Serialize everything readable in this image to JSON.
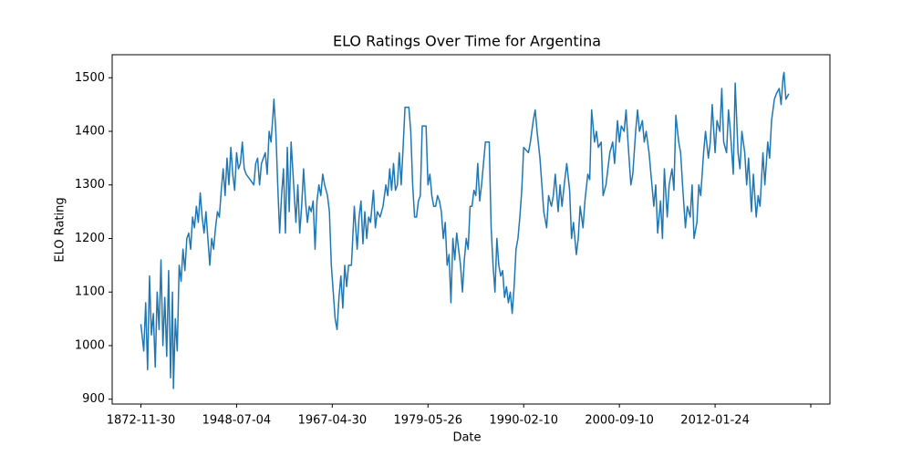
{
  "chart_data": {
    "type": "line",
    "title": "ELO Ratings Over Time for Argentina",
    "xlabel": "Date",
    "ylabel": "ELO Rating",
    "color": "#1f77b4",
    "xlim": [
      -30,
      720
    ],
    "ylim": [
      891,
      1543
    ],
    "xticks": [
      {
        "value": 0,
        "label": "1872-11-30"
      },
      {
        "value": 100,
        "label": "1948-07-04"
      },
      {
        "value": 200,
        "label": "1967-04-30"
      },
      {
        "value": 300,
        "label": "1979-05-26"
      },
      {
        "value": 400,
        "label": "1990-02-10"
      },
      {
        "value": 500,
        "label": "2000-09-10"
      },
      {
        "value": 600,
        "label": "2012-01-24"
      },
      {
        "value": 700,
        "label": null
      }
    ],
    "yticks": [
      900,
      1000,
      1100,
      1200,
      1300,
      1400,
      1500
    ],
    "x": [
      0,
      3,
      5,
      7,
      9,
      11,
      13,
      15,
      17,
      19,
      21,
      23,
      25,
      27,
      29,
      31,
      33,
      34,
      36,
      38,
      40,
      42,
      44,
      46,
      48,
      50,
      52,
      54,
      56,
      58,
      60,
      62,
      64,
      66,
      68,
      70,
      72,
      74,
      76,
      78,
      80,
      82,
      84,
      86,
      88,
      90,
      92,
      94,
      96,
      98,
      100,
      102,
      104,
      106,
      108,
      110,
      114,
      118,
      120,
      122,
      124,
      126,
      128,
      130,
      132,
      134,
      136,
      138,
      139,
      141,
      143,
      145,
      147,
      149,
      151,
      153,
      155,
      157,
      159,
      162,
      164,
      166,
      168,
      170,
      172,
      174,
      176,
      178,
      180,
      182,
      184,
      186,
      188,
      190,
      192,
      195,
      197,
      199,
      201,
      203,
      205,
      207,
      209,
      211,
      213,
      215,
      217,
      220,
      223,
      226,
      228,
      230,
      232,
      234,
      236,
      238,
      240,
      243,
      245,
      247,
      250,
      253,
      256,
      258,
      260,
      262,
      264,
      266,
      268,
      270,
      272,
      274,
      276,
      280,
      282,
      284,
      286,
      288,
      290,
      292,
      294,
      298,
      300,
      302,
      304,
      306,
      308,
      310,
      312,
      314,
      316,
      318,
      320,
      322,
      324,
      326,
      328,
      330,
      332,
      334,
      336,
      338,
      340,
      342,
      344,
      346,
      348,
      350,
      352,
      354,
      356,
      360,
      364,
      366,
      368,
      370,
      372,
      374,
      376,
      378,
      380,
      382,
      384,
      386,
      388,
      390,
      392,
      394,
      396,
      398,
      400,
      405,
      407,
      410,
      412,
      414,
      417,
      419,
      421,
      424,
      426,
      429,
      431,
      433,
      436,
      438,
      440,
      443,
      445,
      448,
      450,
      452,
      455,
      457,
      459,
      462,
      464,
      467,
      469,
      471,
      474,
      476,
      478,
      481,
      483,
      486,
      488,
      490,
      493,
      495,
      498,
      500,
      502,
      505,
      507,
      509,
      512,
      514,
      517,
      519,
      521,
      524,
      526,
      528,
      531,
      533,
      536,
      538,
      540,
      543,
      545,
      547,
      550,
      552,
      555,
      557,
      559,
      562,
      564,
      566,
      569,
      571,
      574,
      576,
      578,
      581,
      583,
      585,
      588,
      590,
      593,
      595,
      597,
      600,
      602,
      605,
      607,
      609,
      612,
      614,
      616,
      619,
      621,
      624,
      626,
      628,
      631,
      633,
      635,
      638,
      640,
      643,
      645,
      647,
      650,
      652,
      655,
      657,
      659,
      662,
      664,
      667,
      669,
      671,
      672,
      674,
      677
    ],
    "values": [
      1040,
      990,
      1080,
      955,
      1130,
      1020,
      1060,
      960,
      1100,
      1030,
      1160,
      1000,
      1090,
      980,
      1140,
      940,
      1100,
      920,
      1050,
      990,
      1150,
      1120,
      1180,
      1140,
      1200,
      1210,
      1180,
      1240,
      1220,
      1260,
      1230,
      1285,
      1240,
      1210,
      1250,
      1200,
      1150,
      1200,
      1180,
      1220,
      1250,
      1240,
      1290,
      1330,
      1280,
      1350,
      1300,
      1370,
      1320,
      1290,
      1360,
      1330,
      1340,
      1380,
      1330,
      1320,
      1310,
      1300,
      1340,
      1350,
      1300,
      1340,
      1350,
      1360,
      1320,
      1400,
      1380,
      1430,
      1460,
      1400,
      1300,
      1210,
      1280,
      1330,
      1210,
      1370,
      1250,
      1380,
      1320,
      1230,
      1300,
      1210,
      1260,
      1330,
      1270,
      1230,
      1260,
      1250,
      1270,
      1180,
      1270,
      1300,
      1280,
      1320,
      1300,
      1280,
      1250,
      1150,
      1100,
      1050,
      1030,
      1090,
      1130,
      1070,
      1150,
      1110,
      1150,
      1150,
      1260,
      1180,
      1240,
      1270,
      1190,
      1250,
      1200,
      1240,
      1230,
      1290,
      1220,
      1250,
      1240,
      1260,
      1300,
      1280,
      1330,
      1290,
      1340,
      1290,
      1300,
      1360,
      1300,
      1370,
      1445,
      1445,
      1400,
      1300,
      1240,
      1240,
      1270,
      1280,
      1410,
      1410,
      1300,
      1320,
      1280,
      1260,
      1260,
      1280,
      1270,
      1250,
      1200,
      1230,
      1150,
      1170,
      1080,
      1200,
      1160,
      1210,
      1180,
      1150,
      1100,
      1160,
      1200,
      1180,
      1260,
      1260,
      1290,
      1280,
      1340,
      1270,
      1300,
      1380,
      1380,
      1220,
      1150,
      1100,
      1200,
      1150,
      1130,
      1140,
      1090,
      1110,
      1080,
      1100,
      1060,
      1110,
      1180,
      1200,
      1240,
      1290,
      1370,
      1360,
      1380,
      1420,
      1440,
      1400,
      1350,
      1300,
      1250,
      1220,
      1280,
      1260,
      1280,
      1320,
      1250,
      1300,
      1260,
      1310,
      1340,
      1290,
      1200,
      1230,
      1170,
      1200,
      1260,
      1220,
      1270,
      1320,
      1310,
      1440,
      1380,
      1400,
      1370,
      1380,
      1280,
      1300,
      1330,
      1360,
      1380,
      1340,
      1420,
      1380,
      1410,
      1400,
      1440,
      1380,
      1300,
      1320,
      1400,
      1440,
      1400,
      1420,
      1380,
      1400,
      1360,
      1320,
      1260,
      1300,
      1210,
      1270,
      1200,
      1330,
      1240,
      1300,
      1330,
      1290,
      1430,
      1380,
      1360,
      1300,
      1220,
      1260,
      1240,
      1300,
      1200,
      1230,
      1300,
      1280,
      1360,
      1400,
      1350,
      1380,
      1450,
      1360,
      1420,
      1400,
      1480,
      1380,
      1360,
      1440,
      1400,
      1320,
      1490,
      1360,
      1330,
      1400,
      1360,
      1300,
      1350,
      1250,
      1320,
      1240,
      1280,
      1260,
      1360,
      1300,
      1380,
      1350,
      1420,
      1460,
      1470,
      1480,
      1450,
      1500,
      1510,
      1460,
      1470
    ]
  }
}
